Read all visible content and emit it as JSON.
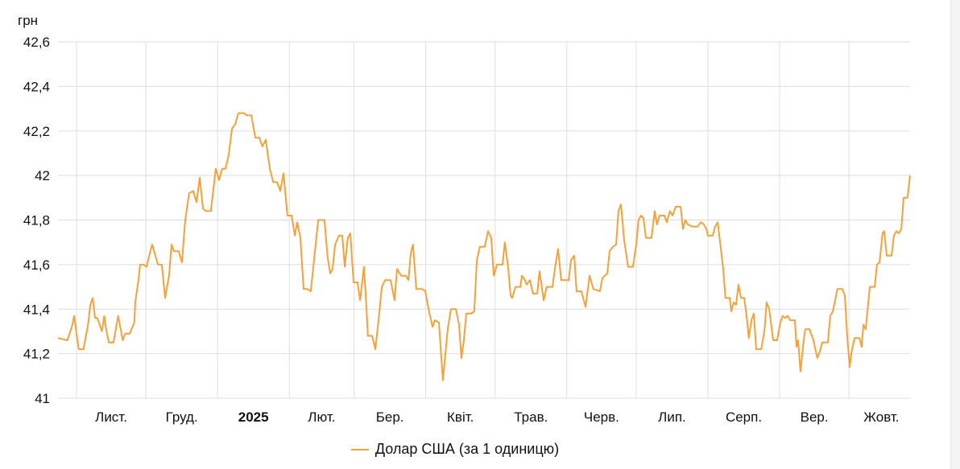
{
  "chart_data": {
    "type": "line",
    "title": "",
    "ylabel": "грн",
    "xlabel": "",
    "x_unit": "days since 2024-11-01",
    "xlim": [
      -8,
      360.4
    ],
    "ylim": [
      41,
      42.6
    ],
    "grid": true,
    "legend_position": "bottom",
    "y_ticks": [
      41,
      41.2,
      41.4,
      41.6,
      41.8,
      42,
      42.2,
      42.4,
      42.6
    ],
    "y_tick_labels": [
      "41",
      "41,2",
      "41,4",
      "41,6",
      "41,8",
      "42",
      "42,2",
      "42,4",
      "42,6"
    ],
    "month_gridlines": [
      0,
      30,
      61,
      92,
      120,
      151,
      181,
      212,
      242,
      273,
      304,
      334
    ],
    "x_tick_labels": [
      {
        "label": "Лист.",
        "day": 15,
        "bold": false
      },
      {
        "label": "Груд.",
        "day": 45.5,
        "bold": false
      },
      {
        "label": "2025",
        "day": 76.5,
        "bold": true
      },
      {
        "label": "Лют.",
        "day": 106,
        "bold": false
      },
      {
        "label": "Бер.",
        "day": 135.5,
        "bold": false
      },
      {
        "label": "Квіт.",
        "day": 166,
        "bold": false
      },
      {
        "label": "Трав.",
        "day": 196.5,
        "bold": false
      },
      {
        "label": "Черв.",
        "day": 227,
        "bold": false
      },
      {
        "label": "Лип.",
        "day": 257.5,
        "bold": false
      },
      {
        "label": "Серп.",
        "day": 288.5,
        "bold": false
      },
      {
        "label": "Вер.",
        "day": 319,
        "bold": false
      },
      {
        "label": "Жовт.",
        "day": 348,
        "bold": false
      }
    ],
    "series": [
      {
        "name": "Долар США (за 1 одиницю)",
        "color": "#f5a13a",
        "points": [
          [
            -8,
            41.27
          ],
          [
            -4,
            41.26
          ],
          [
            -2,
            41.32
          ],
          [
            -1,
            41.37
          ],
          [
            0,
            41.29
          ],
          [
            1,
            41.22
          ],
          [
            3,
            41.22
          ],
          [
            5,
            41.33
          ],
          [
            6,
            41.42
          ],
          [
            7,
            41.45
          ],
          [
            8,
            41.36
          ],
          [
            9,
            41.36
          ],
          [
            11,
            41.3
          ],
          [
            12,
            41.37
          ],
          [
            13,
            41.3
          ],
          [
            14,
            41.25
          ],
          [
            16,
            41.25
          ],
          [
            18,
            41.37
          ],
          [
            20,
            41.26
          ],
          [
            21,
            41.29
          ],
          [
            23,
            41.29
          ],
          [
            25,
            41.34
          ],
          [
            25.4,
            41.43
          ],
          [
            26.8,
            41.53
          ],
          [
            27.5,
            41.6
          ],
          [
            28.9,
            41.6
          ],
          [
            30.3,
            41.59
          ],
          [
            31.7,
            41.65
          ],
          [
            32.7,
            41.69
          ],
          [
            34.1,
            41.64
          ],
          [
            35.2,
            41.6
          ],
          [
            36.9,
            41.6
          ],
          [
            38.3,
            41.45
          ],
          [
            40.0,
            41.55
          ],
          [
            41.1,
            41.69
          ],
          [
            42.1,
            41.66
          ],
          [
            44.2,
            41.66
          ],
          [
            45.6,
            41.61
          ],
          [
            47.0,
            41.8
          ],
          [
            48.7,
            41.92
          ],
          [
            50.5,
            41.93
          ],
          [
            51.9,
            41.88
          ],
          [
            53.3,
            41.99
          ],
          [
            54.7,
            41.85
          ],
          [
            56.1,
            41.84
          ],
          [
            58.1,
            41.84
          ],
          [
            60.2,
            42.03
          ],
          [
            61.6,
            41.98
          ],
          [
            63.0,
            42.03
          ],
          [
            64.4,
            42.03
          ],
          [
            65.8,
            42.09
          ],
          [
            67.2,
            42.21
          ],
          [
            68.6,
            42.23
          ],
          [
            70.0,
            42.28
          ],
          [
            72.4,
            42.28
          ],
          [
            73.5,
            42.27
          ],
          [
            75.6,
            42.27
          ],
          [
            77.3,
            42.17
          ],
          [
            79.0,
            42.17
          ],
          [
            80.4,
            42.13
          ],
          [
            81.8,
            42.16
          ],
          [
            83.6,
            42.03
          ],
          [
            85.0,
            41.97
          ],
          [
            86.7,
            41.97
          ],
          [
            88.1,
            41.93
          ],
          [
            89.5,
            42.01
          ],
          [
            91.2,
            41.82
          ],
          [
            93.0,
            41.82
          ],
          [
            94.4,
            41.73
          ],
          [
            95.4,
            41.79
          ],
          [
            96.8,
            41.72
          ],
          [
            98.2,
            41.49
          ],
          [
            99.9,
            41.49
          ],
          [
            101.3,
            41.48
          ],
          [
            102.7,
            41.62
          ],
          [
            104.5,
            41.8
          ],
          [
            107.2,
            41.8
          ],
          [
            108.6,
            41.63
          ],
          [
            109.7,
            41.56
          ],
          [
            110.7,
            41.58
          ],
          [
            111.8,
            41.69
          ],
          [
            113.5,
            41.73
          ],
          [
            114.9,
            41.73
          ],
          [
            116.0,
            41.59
          ],
          [
            117.3,
            41.72
          ],
          [
            118.4,
            41.74
          ],
          [
            119.8,
            41.52
          ],
          [
            121.5,
            41.52
          ],
          [
            122.6,
            41.44
          ],
          [
            124.3,
            41.59
          ],
          [
            125.4,
            41.4
          ],
          [
            126.0,
            41.28
          ],
          [
            127.8,
            41.28
          ],
          [
            129.2,
            41.22
          ],
          [
            130.6,
            41.35
          ],
          [
            132.0,
            41.5
          ],
          [
            133.4,
            41.53
          ],
          [
            135.8,
            41.53
          ],
          [
            137.5,
            41.44
          ],
          [
            138.6,
            41.58
          ],
          [
            140.3,
            41.55
          ],
          [
            142.4,
            41.55
          ],
          [
            143.5,
            41.53
          ],
          [
            144.5,
            41.65
          ],
          [
            145.5,
            41.69
          ],
          [
            146.9,
            41.49
          ],
          [
            149.4,
            41.49
          ],
          [
            150.8,
            41.48
          ],
          [
            152.2,
            41.4
          ],
          [
            153.9,
            41.32
          ],
          [
            154.9,
            41.35
          ],
          [
            156.7,
            41.34
          ],
          [
            158.4,
            41.08
          ],
          [
            160.5,
            41.31
          ],
          [
            161.9,
            41.4
          ],
          [
            164.0,
            41.4
          ],
          [
            165.4,
            41.33
          ],
          [
            166.4,
            41.18
          ],
          [
            167.5,
            41.26
          ],
          [
            168.5,
            41.38
          ],
          [
            170.6,
            41.38
          ],
          [
            172.0,
            41.39
          ],
          [
            173.1,
            41.62
          ],
          [
            174.4,
            41.68
          ],
          [
            176.5,
            41.68
          ],
          [
            177.9,
            41.75
          ],
          [
            179.3,
            41.72
          ],
          [
            180.4,
            41.55
          ],
          [
            181.8,
            41.6
          ],
          [
            184.2,
            41.6
          ],
          [
            185.2,
            41.7
          ],
          [
            186.6,
            41.59
          ],
          [
            187.7,
            41.46
          ],
          [
            188.4,
            41.45
          ],
          [
            189.8,
            41.5
          ],
          [
            191.9,
            41.5
          ],
          [
            192.6,
            41.55
          ],
          [
            193.9,
            41.53
          ],
          [
            194.6,
            41.51
          ],
          [
            196.0,
            41.53
          ],
          [
            197.4,
            41.47
          ],
          [
            199.2,
            41.47
          ],
          [
            200.2,
            41.57
          ],
          [
            202.0,
            41.44
          ],
          [
            203.3,
            41.5
          ],
          [
            205.8,
            41.5
          ],
          [
            206.8,
            41.58
          ],
          [
            208.2,
            41.67
          ],
          [
            209.6,
            41.53
          ],
          [
            212.8,
            41.53
          ],
          [
            213.8,
            41.62
          ],
          [
            215.2,
            41.64
          ],
          [
            216.2,
            41.48
          ],
          [
            218.3,
            41.48
          ],
          [
            220.1,
            41.41
          ],
          [
            221.8,
            41.55
          ],
          [
            223.5,
            41.49
          ],
          [
            226.3,
            41.48
          ],
          [
            227.4,
            41.54
          ],
          [
            229.5,
            41.56
          ],
          [
            230.5,
            41.66
          ],
          [
            231.9,
            41.68
          ],
          [
            233.3,
            41.69
          ],
          [
            234.3,
            41.84
          ],
          [
            235.4,
            41.87
          ],
          [
            236.8,
            41.71
          ],
          [
            238.5,
            41.59
          ],
          [
            240.6,
            41.59
          ],
          [
            242.0,
            41.69
          ],
          [
            243.0,
            41.8
          ],
          [
            244.1,
            41.82
          ],
          [
            245.1,
            41.81
          ],
          [
            246.2,
            41.72
          ],
          [
            248.6,
            41.72
          ],
          [
            250.0,
            41.84
          ],
          [
            251.0,
            41.78
          ],
          [
            252.1,
            41.82
          ],
          [
            254.2,
            41.82
          ],
          [
            255.2,
            41.79
          ],
          [
            256.6,
            41.84
          ],
          [
            257.7,
            41.82
          ],
          [
            259.1,
            41.86
          ],
          [
            261.2,
            41.86
          ],
          [
            262.2,
            41.76
          ],
          [
            263.2,
            41.8
          ],
          [
            264.3,
            41.78
          ],
          [
            266.4,
            41.77
          ],
          [
            268.5,
            41.77
          ],
          [
            269.9,
            41.79
          ],
          [
            271.2,
            41.78
          ],
          [
            272.3,
            41.76
          ],
          [
            273.0,
            41.73
          ],
          [
            275.1,
            41.73
          ],
          [
            276.1,
            41.77
          ],
          [
            277.2,
            41.79
          ],
          [
            278.6,
            41.67
          ],
          [
            279.6,
            41.58
          ],
          [
            280.6,
            41.45
          ],
          [
            282.4,
            41.45
          ],
          [
            283.1,
            41.39
          ],
          [
            284.1,
            41.43
          ],
          [
            285.2,
            41.42
          ],
          [
            286.2,
            41.51
          ],
          [
            287.3,
            41.45
          ],
          [
            288.7,
            41.45
          ],
          [
            289.7,
            41.37
          ],
          [
            290.7,
            41.27
          ],
          [
            291.8,
            41.35
          ],
          [
            292.8,
            41.38
          ],
          [
            293.9,
            41.22
          ],
          [
            296.0,
            41.22
          ],
          [
            297.4,
            41.3
          ],
          [
            298.4,
            41.43
          ],
          [
            299.5,
            41.4
          ],
          [
            301.2,
            41.26
          ],
          [
            302.9,
            41.26
          ],
          [
            304.3,
            41.34
          ],
          [
            305.4,
            41.37
          ],
          [
            306.4,
            41.36
          ],
          [
            307.5,
            41.37
          ],
          [
            308.5,
            41.35
          ],
          [
            310.6,
            41.35
          ],
          [
            311.3,
            41.23
          ],
          [
            312.0,
            41.26
          ],
          [
            313.0,
            41.12
          ],
          [
            314.4,
            41.26
          ],
          [
            315.1,
            41.31
          ],
          [
            316.9,
            41.31
          ],
          [
            318.6,
            41.26
          ],
          [
            320.3,
            41.18
          ],
          [
            321.4,
            41.21
          ],
          [
            322.4,
            41.25
          ],
          [
            324.9,
            41.25
          ],
          [
            325.9,
            41.37
          ],
          [
            327.0,
            41.39
          ],
          [
            329.0,
            41.49
          ],
          [
            331.1,
            41.49
          ],
          [
            332.2,
            41.46
          ],
          [
            333.2,
            41.28
          ],
          [
            334.3,
            41.14
          ],
          [
            335.3,
            41.22
          ],
          [
            336.4,
            41.27
          ],
          [
            338.5,
            41.27
          ],
          [
            339.5,
            41.23
          ],
          [
            340.2,
            41.33
          ],
          [
            341.2,
            41.31
          ],
          [
            343.0,
            41.5
          ],
          [
            345.1,
            41.5
          ],
          [
            346.1,
            41.6
          ],
          [
            347.2,
            41.61
          ],
          [
            348.5,
            41.74
          ],
          [
            349.2,
            41.75
          ],
          [
            350.3,
            41.64
          ],
          [
            352.4,
            41.64
          ],
          [
            353.4,
            41.73
          ],
          [
            354.5,
            41.75
          ],
          [
            355.5,
            41.74
          ],
          [
            356.6,
            41.76
          ],
          [
            357.6,
            41.9
          ],
          [
            359.3,
            41.9
          ],
          [
            360.4,
            42.0
          ]
        ]
      }
    ]
  }
}
